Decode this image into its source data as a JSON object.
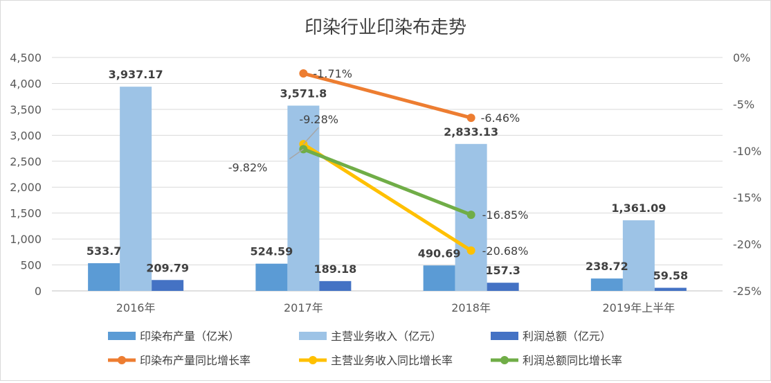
{
  "chart_data": {
    "type": "bar",
    "title": "印染行业印染布走势",
    "categories": [
      "2016年",
      "2017年",
      "2018年",
      "2019年上半年"
    ],
    "ylim": [
      0,
      4500
    ],
    "yticks": [
      "0",
      "500",
      "1,000",
      "1,500",
      "2,000",
      "2,500",
      "3,000",
      "3,500",
      "4,000",
      "4,500"
    ],
    "y2lim": [
      -25,
      0
    ],
    "y2ticks": [
      "0%",
      "-5%",
      "-10%",
      "-15%",
      "-20%",
      "-25%"
    ],
    "grid": true,
    "legend_position": "bottom",
    "bar_series": [
      {
        "name": "印染布产量（亿米）",
        "color": "#5b9bd5",
        "values": [
          533.7,
          524.59,
          490.69,
          238.72
        ],
        "labels": [
          "533.7",
          "524.59",
          "490.69",
          "238.72"
        ]
      },
      {
        "name": "主营业务收入（亿元）",
        "color": "#9dc3e6",
        "values": [
          3937.17,
          3571.8,
          2833.13,
          1361.09
        ],
        "labels": [
          "3,937.17",
          "3,571.8",
          "2,833.13",
          "1,361.09"
        ]
      },
      {
        "name": "利润总额（亿元）",
        "color": "#4472c4",
        "values": [
          209.79,
          189.18,
          157.3,
          59.58
        ],
        "labels": [
          "209.79",
          "189.18",
          "157.3",
          "59.58"
        ]
      }
    ],
    "line_series": [
      {
        "name": "印染布产量同比增长率",
        "color": "#ed7d31",
        "points": [
          {
            "category": "2017年",
            "value": -1.71,
            "label": "-1.71%"
          },
          {
            "category": "2018年",
            "value": -6.46,
            "label": "-6.46%"
          }
        ]
      },
      {
        "name": "主营业务收入同比增长率",
        "color": "#ffc000",
        "points": [
          {
            "category": "2017年",
            "value": -9.28,
            "label": "-9.28%"
          },
          {
            "category": "2018年",
            "value": -20.68,
            "label": "-20.68%"
          }
        ]
      },
      {
        "name": "利润总额同比增长率",
        "color": "#70ad47",
        "points": [
          {
            "category": "2017年",
            "value": -9.82,
            "label": "-9.82%"
          },
          {
            "category": "2018年",
            "value": -16.85,
            "label": "-16.85%"
          }
        ]
      }
    ]
  }
}
